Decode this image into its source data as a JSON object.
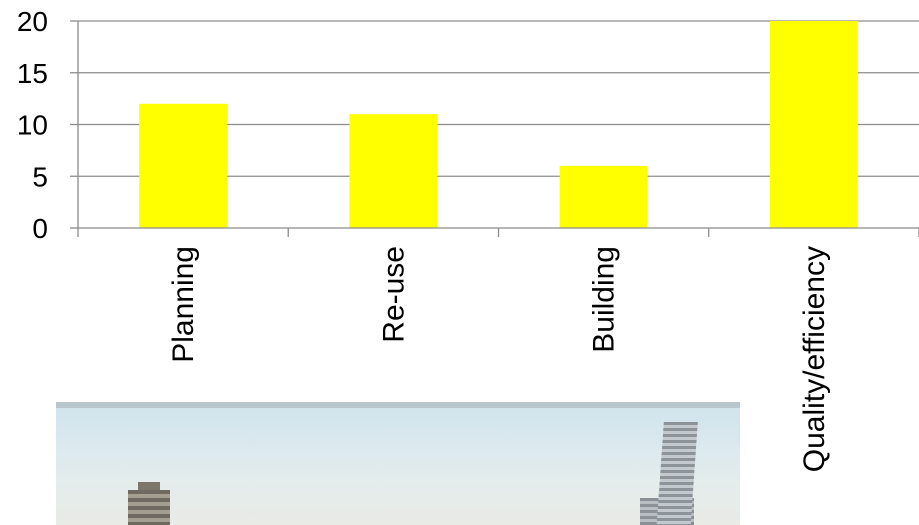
{
  "chart_data": {
    "type": "bar",
    "categories": [
      "Planning",
      "Re-use",
      "Building",
      "Quality/efficiency"
    ],
    "values": [
      12,
      11,
      6,
      20
    ],
    "title": "",
    "xlabel": "",
    "ylabel": "",
    "ylim": [
      0,
      20
    ],
    "yticks": [
      "0",
      "5",
      "10",
      "15",
      "20"
    ],
    "grid": true,
    "legend": "none",
    "bar_color": "#ffff00",
    "grid_color": "#8c8c8c"
  },
  "photo": {
    "icon": "city-skyline-image"
  }
}
